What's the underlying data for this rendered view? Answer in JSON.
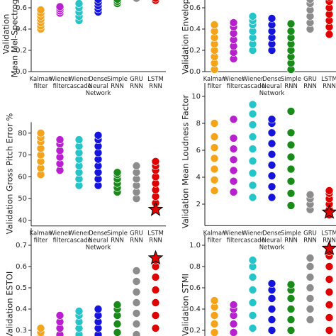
{
  "chart_data": [
    {
      "type": "strip",
      "ylabel": [
        "Validation",
        "Mean Mel-Spectrogra"
      ],
      "categories": [
        [
          "Kalman",
          "filter"
        ],
        [
          "Wiener",
          "filter"
        ],
        [
          "Wiener",
          "cascade"
        ],
        [
          "Dense",
          "Neural",
          "Network"
        ],
        [
          "Simple",
          "RNN"
        ],
        [
          "GRU",
          "RNN"
        ],
        [
          "LSTM",
          "RNN"
        ]
      ],
      "colors": [
        "#f5a31a",
        "#b81fcf",
        "#25c4c8",
        "#1414dc",
        "#1a8a1a",
        "#8c8c8c",
        "#e00000"
      ],
      "values": [
        [
          0.4,
          0.43,
          0.46,
          0.49,
          0.52,
          0.55,
          0.58
        ],
        [
          0.55,
          0.57,
          0.59,
          0.61
        ],
        [
          0.48,
          0.52,
          0.56,
          0.6,
          0.64
        ],
        [
          0.56,
          0.59,
          0.62,
          0.65,
          0.68
        ],
        [
          0.64,
          0.66,
          0.68
        ],
        [
          0.69
        ],
        [
          0.67,
          0.69
        ]
      ],
      "ylim": [
        0,
        0.7
      ],
      "yticks": [
        {
          "value": 0,
          "label": "0.0"
        },
        0.2,
        0.4,
        0.6
      ]
    },
    {
      "type": "strip",
      "ylabel": [
        "Validation Envelope"
      ],
      "categories": [
        [
          "Kalman",
          "filter"
        ],
        [
          "Wiener",
          "filter"
        ],
        [
          "Wiener",
          "cascade"
        ],
        [
          "Dense",
          "Neural",
          "Network"
        ],
        [
          "Simple",
          "RNN"
        ],
        [
          "GRU",
          "RNN"
        ],
        [
          "LSTM",
          "RNN"
        ]
      ],
      "colors": [
        "#f5a31a",
        "#b81fcf",
        "#25c4c8",
        "#1414dc",
        "#1a8a1a",
        "#8c8c8c",
        "#e00000"
      ],
      "values": [
        [
          0.02,
          0.08,
          0.14,
          0.2,
          0.26,
          0.32,
          0.38,
          0.44
        ],
        [
          0.12,
          0.18,
          0.24,
          0.3,
          0.36,
          0.42,
          0.46
        ],
        [
          0.2,
          0.26,
          0.32,
          0.38,
          0.44,
          0.48,
          0.52
        ],
        [
          0.2,
          0.26,
          0.32,
          0.38,
          0.44,
          0.5
        ],
        [
          0.02,
          0.08,
          0.14,
          0.2,
          0.26,
          0.32,
          0.38,
          0.45
        ],
        [
          0.4,
          0.46,
          0.52,
          0.58,
          0.64,
          0.68
        ],
        [
          0.35,
          0.42,
          0.48,
          0.54,
          0.6,
          0.66,
          0.7
        ]
      ],
      "ylim": [
        0,
        0.7
      ],
      "yticks": [
        {
          "value": 0,
          "label": "0.0"
        },
        0.2,
        0.4,
        0.6
      ]
    },
    {
      "type": "strip",
      "ylabel": [
        "Validation Gross Pitch Error %"
      ],
      "categories": [
        [
          "Kalman",
          "filter"
        ],
        [
          "Wiener",
          "filter"
        ],
        [
          "Wiener",
          "cascade"
        ],
        [
          "Dense",
          "Neural",
          "Network"
        ],
        [
          "Simple",
          "RNN"
        ],
        [
          "GRU",
          "RNN"
        ],
        [
          "LSTM",
          "RNN"
        ]
      ],
      "colors": [
        "#f5a31a",
        "#b81fcf",
        "#25c4c8",
        "#1414dc",
        "#1a8a1a",
        "#8c8c8c",
        "#e00000"
      ],
      "values": [
        [
          61,
          64,
          67,
          70,
          73,
          76,
          78,
          80
        ],
        [
          63,
          66,
          69,
          72,
          75,
          77
        ],
        [
          56,
          59,
          62,
          65,
          68,
          71,
          74,
          77
        ],
        [
          56,
          59,
          62,
          65,
          68,
          71,
          74,
          77,
          79
        ],
        [
          53,
          55,
          57,
          59,
          61,
          62
        ],
        [
          50,
          53,
          56,
          59,
          62,
          65
        ],
        [
          45,
          48,
          51,
          54,
          57,
          60,
          63,
          65,
          67
        ]
      ],
      "star": {
        "category": 6,
        "value": 45
      },
      "ylim": [
        37.5,
        85
      ],
      "yticks": [
        40,
        50,
        60,
        70,
        80
      ]
    },
    {
      "type": "strip",
      "ylabel": [
        "Validation Mean Loudness Factor"
      ],
      "categories": [
        [
          "Kalman",
          "filter"
        ],
        [
          "Wiener",
          "filter"
        ],
        [
          "Wiener",
          "cascade"
        ],
        [
          "Dense",
          "Neural",
          "Network"
        ],
        [
          "Simple",
          "RNN"
        ],
        [
          "GRU",
          "RNN"
        ],
        [
          "LSTM",
          "RNN"
        ]
      ],
      "colors": [
        "#f5a31a",
        "#b81fcf",
        "#25c4c8",
        "#1414dc",
        "#1a8a1a",
        "#8c8c8c",
        "#e00000"
      ],
      "values": [
        [
          3.0,
          3.8,
          4.6,
          5.4,
          6.2,
          7.0,
          8.0
        ],
        [
          2.9,
          3.7,
          4.5,
          5.3,
          6.1,
          6.9,
          8.3
        ],
        [
          2.5,
          3.4,
          4.3,
          5.2,
          6.1,
          7.0,
          7.9,
          8.7,
          9.4
        ],
        [
          2.5,
          3.3,
          4.1,
          4.9,
          5.7,
          6.5,
          7.3,
          8.0,
          8.3
        ],
        [
          1.9,
          2.8,
          3.7,
          4.6,
          5.5,
          6.4,
          7.3,
          8.9
        ],
        [
          1.6,
          2.0,
          2.4,
          2.7
        ],
        [
          1.2,
          1.6,
          2.0,
          2.4,
          2.8,
          3.0
        ]
      ],
      "star": {
        "category": 6,
        "value": 1.4
      },
      "ylim": [
        0.4,
        11
      ],
      "yticks": [
        2,
        4,
        6,
        8,
        10
      ]
    },
    {
      "type": "strip",
      "ylabel": [
        "Validation ESTOI"
      ],
      "categories": [
        null,
        null,
        null,
        null,
        null,
        null,
        null
      ],
      "colors": [
        "#f5a31a",
        "#b81fcf",
        "#25c4c8",
        "#1414dc",
        "#1a8a1a",
        "#8c8c8c",
        "#e00000"
      ],
      "values": [
        [
          0.27,
          0.29,
          0.31
        ],
        [
          0.25,
          0.28,
          0.31,
          0.34,
          0.37
        ],
        [
          0.25,
          0.28,
          0.31,
          0.34,
          0.37,
          0.39
        ],
        [
          0.25,
          0.28,
          0.31,
          0.34,
          0.37,
          0.4
        ],
        [
          0.25,
          0.29,
          0.33,
          0.37,
          0.4,
          0.42
        ],
        [
          0.28,
          0.33,
          0.38,
          0.43,
          0.48,
          0.53,
          0.58
        ],
        [
          0.25,
          0.31,
          0.37,
          0.43,
          0.49,
          0.55,
          0.6,
          0.63
        ]
      ],
      "star": {
        "category": 6,
        "value": 0.64
      },
      "ylim": [
        0.25,
        0.78
      ],
      "yticks": [
        0.3,
        0.4,
        0.5,
        0.6,
        0.7
      ]
    },
    {
      "type": "strip",
      "ylabel": [
        "Validation STMI"
      ],
      "categories": [
        null,
        null,
        null,
        null,
        null,
        null,
        null
      ],
      "colors": [
        "#f5a31a",
        "#b81fcf",
        "#25c4c8",
        "#1414dc",
        "#1a8a1a",
        "#8c8c8c",
        "#e00000"
      ],
      "values": [
        [
          0.1,
          0.18,
          0.26,
          0.34,
          0.42,
          0.48
        ],
        [
          0.1,
          0.18,
          0.26,
          0.34,
          0.4,
          0.44
        ],
        [
          0.1,
          0.22,
          0.34,
          0.46,
          0.58,
          0.7,
          0.8,
          0.86
        ],
        [
          0.1,
          0.2,
          0.3,
          0.4,
          0.5,
          0.58,
          0.64
        ],
        [
          0.1,
          0.2,
          0.3,
          0.4,
          0.5,
          0.58,
          0.63
        ],
        [
          0.3,
          0.4,
          0.5,
          0.6,
          0.7,
          0.8,
          0.88
        ],
        [
          0.2,
          0.32,
          0.44,
          0.56,
          0.68,
          0.8,
          0.9,
          0.94
        ]
      ],
      "star": {
        "category": 6,
        "value": 0.97
      },
      "ylim": [
        0.1,
        1.1
      ],
      "yticks": [
        0.2,
        0.4,
        0.6,
        0.8,
        {
          "value": 1,
          "label": "1.0"
        }
      ]
    }
  ]
}
